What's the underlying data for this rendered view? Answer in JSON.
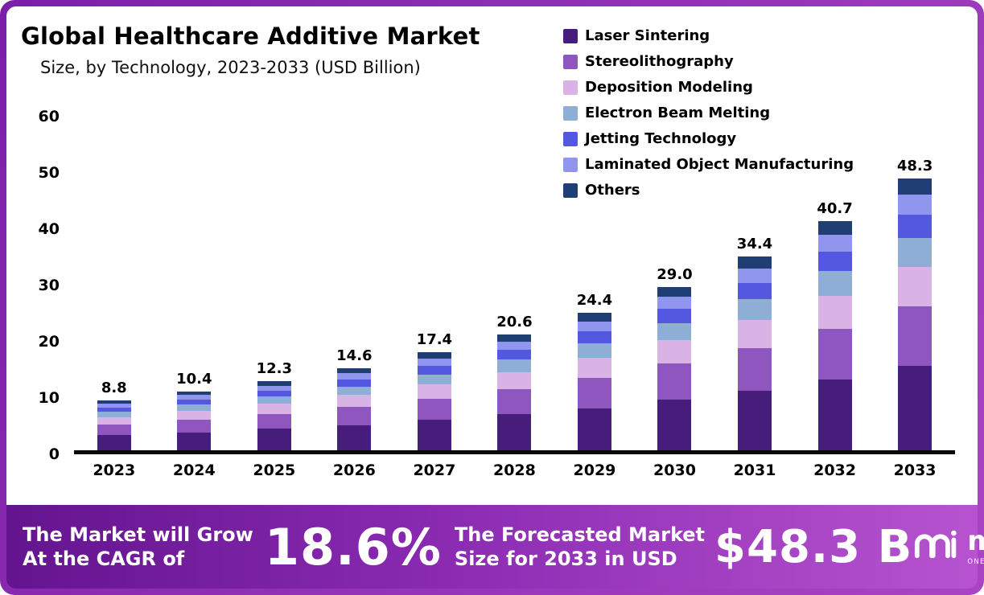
{
  "header": {
    "title": "Global Healthcare Additive Market",
    "subtitle": "Size, by Technology, 2023-2033 (USD Billion)"
  },
  "chart_data": {
    "type": "bar",
    "stacked": true,
    "title": "Global Healthcare Additive Market Size, by Technology, 2023-2033 (USD Billion)",
    "xlabel": "",
    "ylabel": "",
    "ylim": [
      0,
      60
    ],
    "yticks": [
      0,
      10,
      20,
      30,
      40,
      50,
      60
    ],
    "grid": false,
    "legend_position": "top-right",
    "categories": [
      "2023",
      "2024",
      "2025",
      "2026",
      "2027",
      "2028",
      "2029",
      "2030",
      "2031",
      "2032",
      "2033"
    ],
    "totals": [
      "8.8",
      "10.4",
      "12.3",
      "14.6",
      "17.4",
      "20.6",
      "24.4",
      "29.0",
      "34.4",
      "40.7",
      "48.3"
    ],
    "series": [
      {
        "name": "Laser Sintering",
        "color": "#471d7c",
        "values": [
          2.7,
          3.2,
          3.8,
          4.5,
          5.4,
          6.4,
          7.5,
          9.0,
          10.6,
          12.6,
          15.0
        ]
      },
      {
        "name": "Stereolithography",
        "color": "#9056c0",
        "values": [
          1.9,
          2.3,
          2.7,
          3.2,
          3.8,
          4.5,
          5.4,
          6.4,
          7.6,
          9.0,
          10.6
        ]
      },
      {
        "name": "Deposition Modeling",
        "color": "#d9b3e6",
        "values": [
          1.3,
          1.5,
          1.8,
          2.1,
          2.5,
          3.0,
          3.5,
          4.2,
          5.0,
          5.9,
          7.0
        ]
      },
      {
        "name": "Electron Beam Melting",
        "color": "#8eaed6",
        "values": [
          0.9,
          1.1,
          1.3,
          1.5,
          1.8,
          2.2,
          2.6,
          3.0,
          3.6,
          4.3,
          5.1
        ]
      },
      {
        "name": "Jetting Technology",
        "color": "#5457e0",
        "values": [
          0.8,
          0.9,
          1.0,
          1.3,
          1.5,
          1.7,
          2.1,
          2.5,
          2.9,
          3.5,
          4.1
        ]
      },
      {
        "name": "Laminated Object Manufacturing",
        "color": "#9095ee",
        "values": [
          0.7,
          0.8,
          0.9,
          1.1,
          1.3,
          1.5,
          1.8,
          2.2,
          2.6,
          3.0,
          3.6
        ]
      },
      {
        "name": "Others",
        "color": "#1f3e73",
        "values": [
          0.5,
          0.6,
          0.8,
          0.9,
          1.1,
          1.3,
          1.5,
          1.7,
          2.1,
          2.4,
          2.9
        ]
      }
    ]
  },
  "banner": {
    "cagr_line1": "The Market will Grow",
    "cagr_line2": "At the CAGR of",
    "cagr_value": "18.6%",
    "forecast_line1": "The Forecasted Market",
    "forecast_line2": "Size for 2033 in USD",
    "forecast_value": "$48.3 B",
    "brand": "market.us",
    "brand_tagline": "ONE STOP SHOP FOR THE REPORTS"
  }
}
